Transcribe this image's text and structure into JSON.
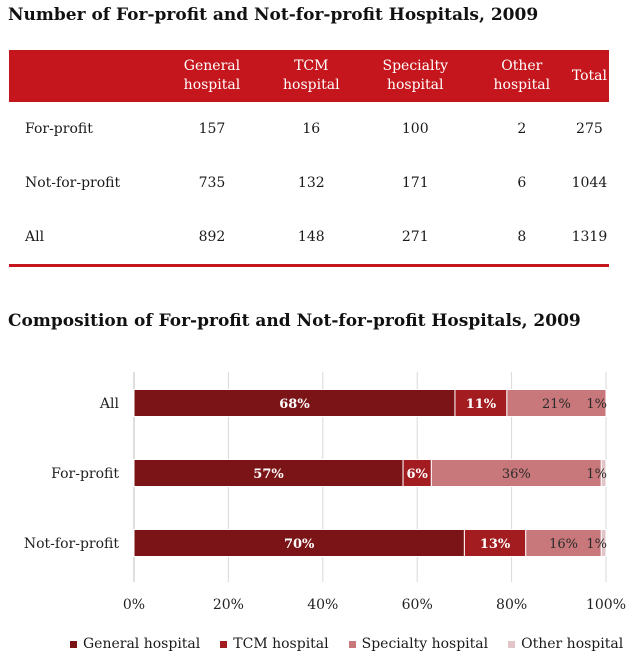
{
  "table": {
    "title": "Number of For-profit and Not-for-profit Hospitals, 2009",
    "headers": [
      "",
      "General hospital",
      "TCM hospital",
      "Specialty hospital",
      "Other hospital",
      "Total"
    ],
    "rows": [
      [
        "For-profit",
        "157",
        "16",
        "100",
        "2",
        "275"
      ],
      [
        "Not-for-profit",
        "735",
        "132",
        "171",
        "6",
        "1044"
      ],
      [
        "All",
        "892",
        "148",
        "271",
        "8",
        "1319"
      ]
    ]
  },
  "chart_data": {
    "type": "bar",
    "orientation": "horizontal",
    "stacked": "percent",
    "title": "Composition of For-profit and Not-for-profit Hospitals, 2009",
    "categories": [
      "All",
      "For-profit",
      "Not-for-profit"
    ],
    "series": [
      {
        "name": "General hospital",
        "values": [
          68,
          57,
          70
        ],
        "labels": [
          "68%",
          "57%",
          "70%"
        ],
        "color": "#7b1416"
      },
      {
        "name": "TCM hospital",
        "values": [
          11,
          6,
          13
        ],
        "labels": [
          "11%",
          "6%",
          "13%"
        ],
        "color": "#a31c20"
      },
      {
        "name": "Specialty hospital",
        "values": [
          21,
          36,
          16
        ],
        "labels": [
          "21%",
          "36%",
          "16%"
        ],
        "color": "#c8787b"
      },
      {
        "name": "Other hospital",
        "values": [
          1,
          1,
          1
        ],
        "labels": [
          "1%",
          "1%",
          "1%"
        ],
        "color": "#e2c5c6"
      }
    ],
    "xlim": [
      0,
      100
    ],
    "xticks": [
      "0%",
      "20%",
      "40%",
      "60%",
      "80%",
      "100%"
    ],
    "grid": true,
    "legend_position": "bottom"
  }
}
